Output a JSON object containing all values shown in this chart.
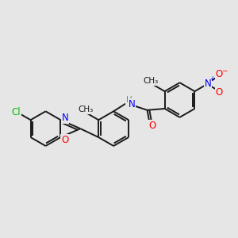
{
  "background_color": "#e6e6e6",
  "bond_color": "#1a1a1a",
  "bond_width": 1.4,
  "atom_colors": {
    "N": "#0000ff",
    "O": "#ff0000",
    "Cl": "#00bb00",
    "H": "#4a9090",
    "C": "#1a1a1a"
  },
  "font_size": 8.5
}
